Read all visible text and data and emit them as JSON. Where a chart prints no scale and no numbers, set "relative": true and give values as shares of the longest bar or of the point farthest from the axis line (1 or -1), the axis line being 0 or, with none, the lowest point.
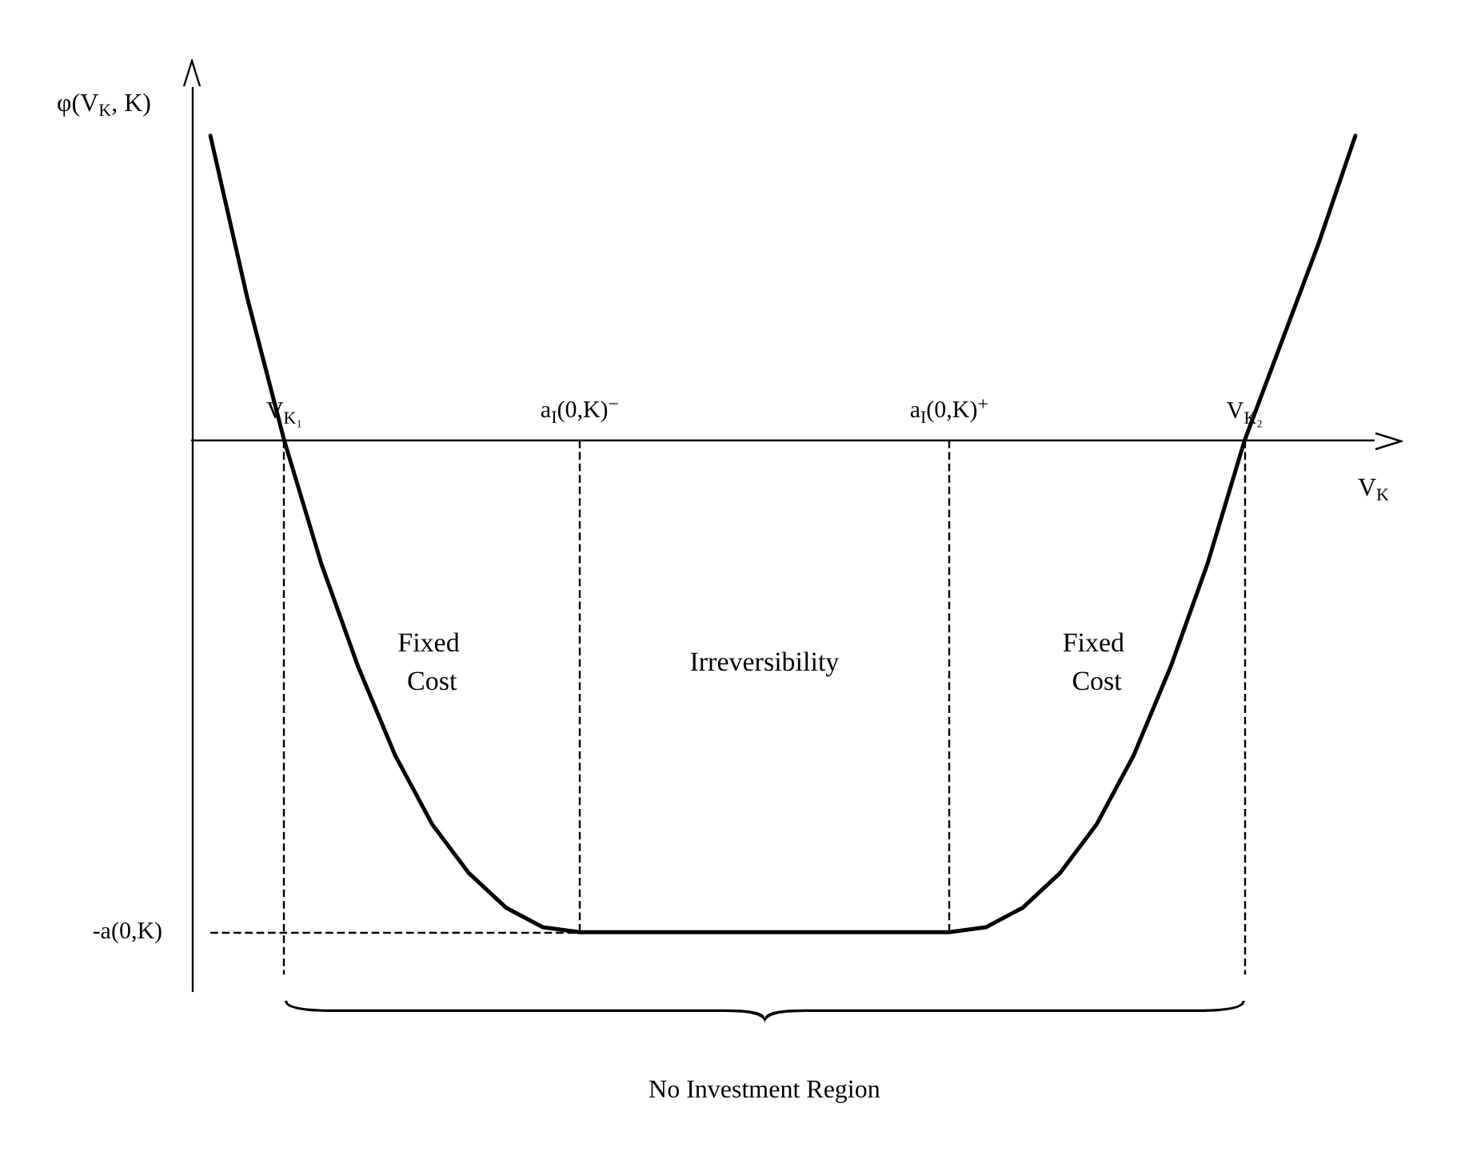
{
  "chart_data": {
    "type": "line",
    "relative": true,
    "categories": [
      null,
      null,
      "V$_{K₁}$",
      null,
      null,
      null,
      null,
      null,
      null,
      null,
      "a$_{I}$(0,K)$^{−}$",
      null,
      null,
      null,
      null,
      null,
      null,
      null,
      null,
      null,
      "a$_{I}$(0,K)$^{+}$",
      null,
      null,
      null,
      null,
      null,
      null,
      null,
      "V$_{K₂}$",
      null,
      null,
      null
    ],
    "series": [
      {
        "color": "#000000",
        "values": [
          0.62,
          0.29,
          0,
          -0.25,
          -0.46,
          -0.64,
          -0.78,
          -0.88,
          -0.95,
          -0.99,
          -1,
          -1,
          -1,
          -1,
          -1,
          -1,
          -1,
          -1,
          -1,
          -1,
          -1,
          -0.99,
          -0.95,
          -0.88,
          -0.78,
          -0.64,
          -0.46,
          -0.25,
          0,
          0.2,
          0.4,
          0.62
        ]
      }
    ],
    "xlabel": "V$_{K}$",
    "ylabel": "φ(V$_{K}$, K)",
    "ref_lines": [
      {
        "axis": "y",
        "value": -1,
        "label": "-a(0,K)",
        "line_style": "dashed"
      },
      {
        "axis": "x",
        "value": "V$_{K₁}$",
        "line_style": "dashed"
      },
      {
        "axis": "x",
        "value": "a$_{I}$(0,K)$^{−}$",
        "line_style": "dashed"
      },
      {
        "axis": "x",
        "value": "a$_{I}$(0,K)$^{+}$",
        "line_style": "dashed"
      },
      {
        "axis": "x",
        "value": "V$_{K₂}$",
        "line_style": "dashed"
      }
    ],
    "annotations": [
      "Fixed Cost",
      "Irreversibility",
      "Fixed Cost",
      "No Investment Region"
    ],
    "grid": false,
    "marker": "none",
    "line_style": "solid"
  }
}
